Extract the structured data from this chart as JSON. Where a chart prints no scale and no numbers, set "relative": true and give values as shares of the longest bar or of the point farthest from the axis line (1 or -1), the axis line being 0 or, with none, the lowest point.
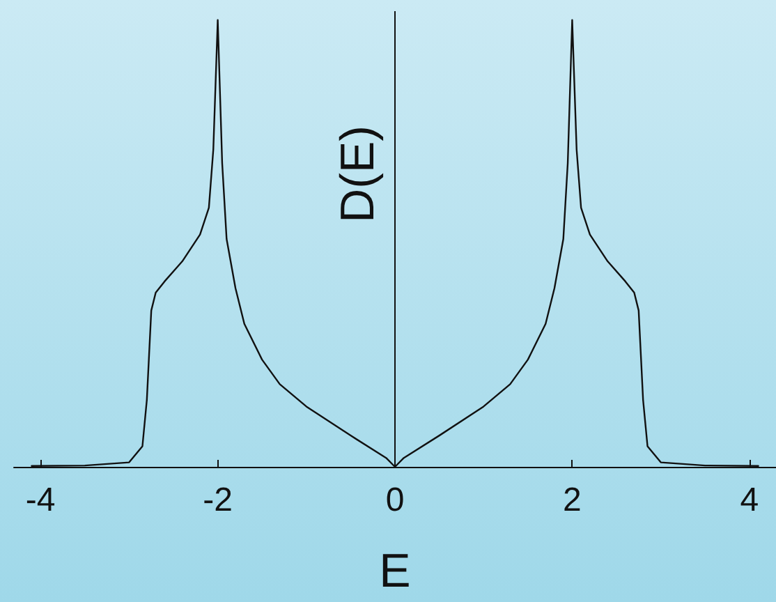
{
  "chart_data": {
    "type": "line",
    "relative": true,
    "xlabel": "E",
    "ylabel": "D(E)",
    "xlim": [
      -4.3,
      4.3
    ],
    "xticks": [
      -4,
      -2,
      0,
      2,
      4
    ],
    "tick_labels": "x",
    "marker": "none",
    "line_style": "solid",
    "grid": false,
    "ref_lines": [
      {
        "axis": "x",
        "value": 0
      }
    ],
    "series": [
      {
        "color": "#111111",
        "x": [
          -4.1,
          -3.5,
          -3.0,
          -2.85,
          -2.8,
          -2.75,
          -2.7,
          -2.6,
          -2.4,
          -2.2,
          -2.1,
          -2.05,
          -2.0,
          -1.95,
          -1.9,
          -1.8,
          -1.7,
          -1.5,
          -1.3,
          -1.0,
          -0.5,
          -0.1,
          0,
          0.1,
          0.5,
          1.0,
          1.3,
          1.5,
          1.7,
          1.8,
          1.9,
          1.95,
          2.0,
          2.05,
          2.1,
          2.2,
          2.4,
          2.6,
          2.7,
          2.75,
          2.8,
          2.85,
          3.0,
          3.5,
          4.1
        ],
        "values": [
          0.002,
          0.003,
          0.01,
          0.046,
          0.15,
          0.35,
          0.39,
          0.415,
          0.46,
          0.52,
          0.58,
          0.71,
          1,
          0.68,
          0.51,
          0.4,
          0.32,
          0.24,
          0.185,
          0.135,
          0.07,
          0.02,
          0,
          0.02,
          0.07,
          0.135,
          0.185,
          0.24,
          0.32,
          0.4,
          0.51,
          0.68,
          1,
          0.71,
          0.58,
          0.52,
          0.46,
          0.415,
          0.39,
          0.35,
          0.15,
          0.046,
          0.01,
          0.003,
          0.002
        ]
      }
    ]
  }
}
